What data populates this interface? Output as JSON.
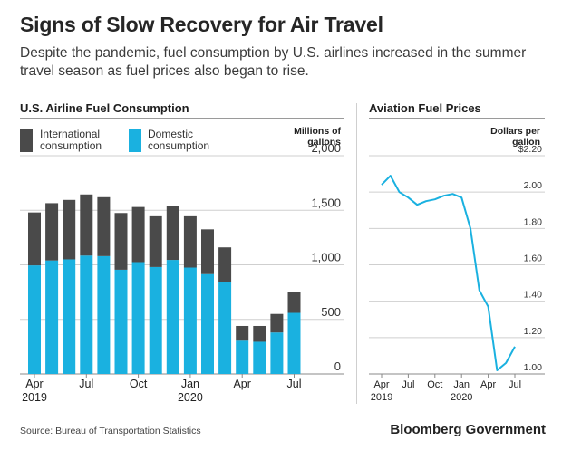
{
  "title": "Signs of Slow Recovery for Air Travel",
  "subtitle": "Despite the pandemic, fuel consumption by U.S. airlines increased in the summer travel season as fuel prices also began to rise.",
  "left_panel": {
    "title": "U.S. Airline Fuel Consumption",
    "unit": "Millions of gallons",
    "legend": [
      {
        "label": "International consumption",
        "color": "#4a4a4a"
      },
      {
        "label": "Domestic consumption",
        "color": "#1ab1e0"
      }
    ]
  },
  "right_panel": {
    "title": "Aviation Fuel Prices",
    "unit": "Dollars per gallon"
  },
  "source": "Source:  Bureau of Transportation Statistics",
  "brand": "Bloomberg Government",
  "chart_data": [
    {
      "type": "bar",
      "stacked": true,
      "title": "U.S. Airline Fuel Consumption",
      "ylabel": "Millions of gallons",
      "ylim": [
        0,
        2000
      ],
      "yticks": [
        "0",
        "500",
        "1,000",
        "1,500",
        "2,000"
      ],
      "categories": [
        "Apr 2019",
        "May 2019",
        "Jun 2019",
        "Jul 2019",
        "Aug 2019",
        "Sep 2019",
        "Oct 2019",
        "Nov 2019",
        "Dec 2019",
        "Jan 2020",
        "Feb 2020",
        "Mar 2020",
        "Apr 2020",
        "May 2020",
        "Jun 2020",
        "Jul 2020"
      ],
      "xtick_labels": [
        {
          "index": 0,
          "line1": "Apr",
          "line2": "2019"
        },
        {
          "index": 3,
          "line1": "Jul",
          "line2": ""
        },
        {
          "index": 6,
          "line1": "Oct",
          "line2": ""
        },
        {
          "index": 9,
          "line1": "Jan",
          "line2": "2020"
        },
        {
          "index": 12,
          "line1": "Apr",
          "line2": ""
        },
        {
          "index": 15,
          "line1": "Jul",
          "line2": ""
        }
      ],
      "series": [
        {
          "name": "Domestic consumption",
          "color": "#1ab1e0",
          "values": [
            995,
            1040,
            1050,
            1085,
            1080,
            955,
            1025,
            980,
            1045,
            975,
            915,
            840,
            305,
            295,
            380,
            560
          ]
        },
        {
          "name": "International consumption",
          "color": "#4a4a4a",
          "values": [
            485,
            525,
            545,
            560,
            540,
            520,
            505,
            465,
            495,
            470,
            410,
            320,
            135,
            145,
            170,
            195
          ]
        }
      ],
      "grid": true
    },
    {
      "type": "line",
      "title": "Aviation Fuel Prices",
      "ylabel": "Dollars per gallon",
      "ylim": [
        1.0,
        2.2
      ],
      "yticks": [
        "1.00",
        "1.20",
        "1.40",
        "1.60",
        "1.80",
        "2.00",
        "$2.20"
      ],
      "x": [
        "Apr 2019",
        "May 2019",
        "Jun 2019",
        "Jul 2019",
        "Aug 2019",
        "Sep 2019",
        "Oct 2019",
        "Nov 2019",
        "Dec 2019",
        "Jan 2020",
        "Feb 2020",
        "Mar 2020",
        "Apr 2020",
        "May 2020",
        "Jun 2020",
        "Jul 2020"
      ],
      "xtick_labels": [
        {
          "index": 0,
          "line1": "Apr",
          "line2": "2019"
        },
        {
          "index": 3,
          "line1": "Jul",
          "line2": ""
        },
        {
          "index": 6,
          "line1": "Oct",
          "line2": ""
        },
        {
          "index": 9,
          "line1": "Jan",
          "line2": "2020"
        },
        {
          "index": 12,
          "line1": "Apr",
          "line2": ""
        },
        {
          "index": 15,
          "line1": "Jul",
          "line2": ""
        }
      ],
      "series": [
        {
          "color": "#1ab1e0",
          "values": [
            2.04,
            2.09,
            2.0,
            1.97,
            1.93,
            1.95,
            1.96,
            1.98,
            1.99,
            1.97,
            1.8,
            1.46,
            1.37,
            1.02,
            1.06,
            1.15
          ]
        }
      ],
      "grid": true
    }
  ]
}
